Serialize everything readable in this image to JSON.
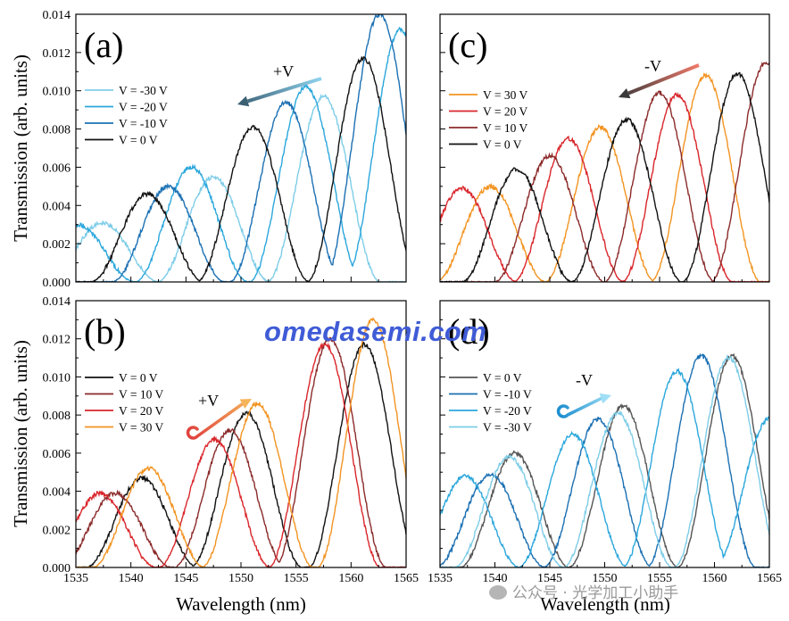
{
  "shared_axes": {
    "xlabel": "Wavelength (nm)",
    "ylabel": "Transmission (arb. units)",
    "x_ticks": [
      1535,
      1540,
      1545,
      1550,
      1555,
      1560,
      1565
    ],
    "y_ticks": [
      "0.000",
      "0.002",
      "0.004",
      "0.006",
      "0.008",
      "0.010",
      "0.012",
      "0.014"
    ]
  },
  "chart_data": [
    {
      "panel": "(a)",
      "type": "line",
      "xlim": [
        1535,
        1565
      ],
      "ylim": [
        0,
        0.014
      ],
      "annotation": "+V",
      "series": [
        {
          "name": "V = -30 V",
          "color": "#7ecde8",
          "period": 10.3,
          "peaks": [
            [
              1537.4,
              0.0031
            ],
            [
              1547.5,
              0.0055
            ],
            [
              1557.5,
              0.0097
            ]
          ]
        },
        {
          "name": "V = -20 V",
          "color": "#2ba7dc",
          "period": 10.3,
          "peaks": [
            [
              1535.2,
              0.003
            ],
            [
              1545.5,
              0.006
            ],
            [
              1555.9,
              0.0102
            ],
            [
              1564.5,
              0.0132
            ]
          ]
        },
        {
          "name": "V = -10 V",
          "color": "#1b70b3",
          "period": 10.3,
          "peaks": [
            [
              1543.4,
              0.005
            ],
            [
              1554.1,
              0.0094
            ],
            [
              1562.6,
              0.014
            ]
          ]
        },
        {
          "name": "V = 0 V",
          "color": "#111111",
          "period": 10.3,
          "peaks": [
            [
              1541.5,
              0.0046
            ],
            [
              1551.1,
              0.0081
            ],
            [
              1561.1,
              0.0117
            ]
          ]
        }
      ]
    },
    {
      "panel": "(b)",
      "type": "line",
      "xlim": [
        1535,
        1565
      ],
      "ylim": [
        0,
        0.014
      ],
      "annotation": "+V",
      "series": [
        {
          "name": "V = 0 V",
          "color": "#111111",
          "period": 10.2,
          "peaks": [
            [
              1541.0,
              0.0047
            ],
            [
              1550.5,
              0.0081
            ],
            [
              1561.2,
              0.0117
            ]
          ]
        },
        {
          "name": "V = 10 V",
          "color": "#8b2a2a",
          "period": 10.2,
          "peaks": [
            [
              1538.6,
              0.0039
            ],
            [
              1549.0,
              0.0072
            ],
            [
              1558.1,
              0.012
            ]
          ]
        },
        {
          "name": "V = 20 V",
          "color": "#d9262b",
          "period": 10.2,
          "peaks": [
            [
              1537.2,
              0.0039
            ],
            [
              1547.6,
              0.0067
            ],
            [
              1557.6,
              0.0117
            ]
          ]
        },
        {
          "name": "V = 30 V",
          "color": "#f29422",
          "period": 10.2,
          "peaks": [
            [
              1541.6,
              0.0052
            ],
            [
              1551.5,
              0.0086
            ],
            [
              1562.0,
              0.013
            ]
          ]
        }
      ]
    },
    {
      "panel": "(c)",
      "type": "line",
      "xlim": [
        1535,
        1565
      ],
      "ylim": [
        0,
        0.014
      ],
      "annotation": "-V",
      "series": [
        {
          "name": "V = 30 V",
          "color": "#f29422",
          "period": 10.1,
          "peaks": [
            [
              1539.6,
              0.005
            ],
            [
              1549.6,
              0.0081
            ],
            [
              1559.2,
              0.0108
            ]
          ]
        },
        {
          "name": "V = 20 V",
          "color": "#d9262b",
          "period": 10.1,
          "peaks": [
            [
              1537.0,
              0.0049
            ],
            [
              1546.7,
              0.0075
            ],
            [
              1556.6,
              0.0098
            ]
          ]
        },
        {
          "name": "V = 10 V",
          "color": "#8b2a2a",
          "period": 10.1,
          "peaks": [
            [
              1545.0,
              0.0066
            ],
            [
              1555.0,
              0.0099
            ],
            [
              1564.7,
              0.0115
            ]
          ]
        },
        {
          "name": "V = 0 V",
          "color": "#111111",
          "period": 10.1,
          "peaks": [
            [
              1542.0,
              0.0059
            ],
            [
              1552.0,
              0.0085
            ],
            [
              1562.1,
              0.0109
            ]
          ]
        }
      ]
    },
    {
      "panel": "(d)",
      "type": "line",
      "xlim": [
        1535,
        1565
      ],
      "ylim": [
        0,
        0.014
      ],
      "annotation": "-V",
      "series": [
        {
          "name": "V = 0 V",
          "color": "#555555",
          "period": 10.0,
          "peaks": [
            [
              1541.8,
              0.006
            ],
            [
              1551.7,
              0.0085
            ],
            [
              1561.6,
              0.0111
            ]
          ]
        },
        {
          "name": "V = -10 V",
          "color": "#1b70b3",
          "period": 10.0,
          "peaks": [
            [
              1539.6,
              0.0049
            ],
            [
              1549.4,
              0.0078
            ],
            [
              1558.8,
              0.0111
            ]
          ]
        },
        {
          "name": "V = -20 V",
          "color": "#2ba7dc",
          "period": 10.0,
          "peaks": [
            [
              1537.3,
              0.0048
            ],
            [
              1547.1,
              0.007
            ],
            [
              1556.6,
              0.0103
            ],
            [
              1565.0,
              0.0078
            ]
          ]
        },
        {
          "name": "V = -30 V",
          "color": "#7ecde8",
          "period": 10.0,
          "peaks": [
            [
              1541.3,
              0.0058
            ],
            [
              1551.2,
              0.0081
            ],
            [
              1561.3,
              0.011
            ]
          ]
        }
      ]
    }
  ],
  "watermark": "omedasemi.com",
  "footer": "公众号 · 光学加工小助手"
}
